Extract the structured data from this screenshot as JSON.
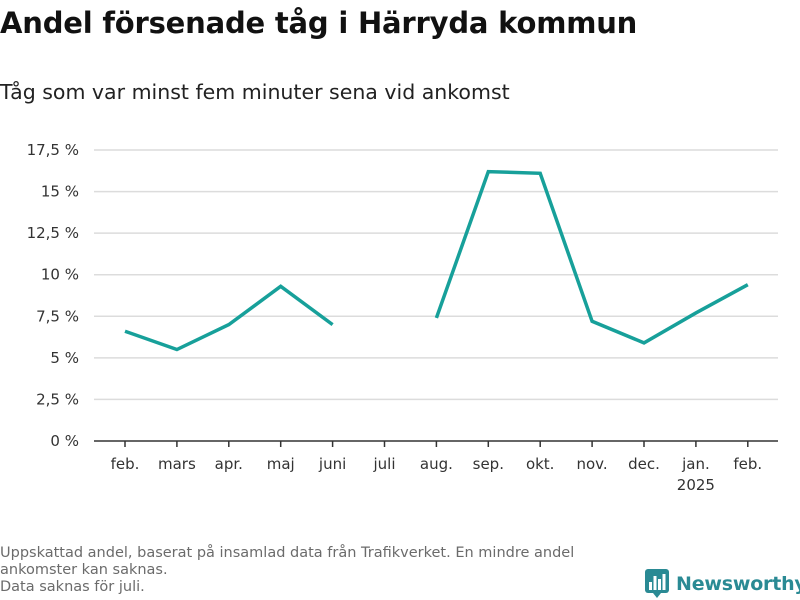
{
  "title": "Andel försenade tåg i Härryda kommun",
  "subtitle": "Tåg som var minst fem minuter sena vid ankomst",
  "footnote": [
    "Uppskattad andel, baserat på insamlad data från Trafikverket. En mindre andel",
    "ankomster kan saknas.",
    "Data saknas för juli."
  ],
  "brand": {
    "name": "Newsworthy",
    "icon": "bar-chart-logo-icon"
  },
  "colors": {
    "line": "#17a09a",
    "grid": "#dcdcdc",
    "axis": "#333333",
    "brand": "#2a8a94"
  },
  "chart_data": {
    "type": "line",
    "title": "Andel försenade tåg i Härryda kommun",
    "subtitle": "Tåg som var minst fem minuter sena vid ankomst",
    "xlabel": "",
    "ylabel": "",
    "categories": [
      "feb.",
      "mars",
      "apr.",
      "maj",
      "juni",
      "juli",
      "aug.",
      "sep.",
      "okt.",
      "nov.",
      "dec.",
      "jan.",
      "feb."
    ],
    "category_sublabels": [
      "",
      "",
      "",
      "",
      "",
      "",
      "",
      "",
      "",
      "",
      "",
      "2025",
      ""
    ],
    "series": [
      {
        "values": [
          6.6,
          5.5,
          7.0,
          9.3,
          7.0,
          null,
          7.4,
          16.2,
          16.1,
          7.2,
          5.9,
          7.7,
          9.4
        ]
      }
    ],
    "ylim": [
      0,
      17.5
    ],
    "yticks": [
      0,
      2.5,
      5,
      7.5,
      10,
      12.5,
      15,
      17.5
    ],
    "ytick_labels": [
      "0 %",
      "2,5 %",
      "5 %",
      "7,5 %",
      "10 %",
      "12,5 %",
      "15 %",
      "17,5 %"
    ],
    "grid": true,
    "legend": "none"
  }
}
